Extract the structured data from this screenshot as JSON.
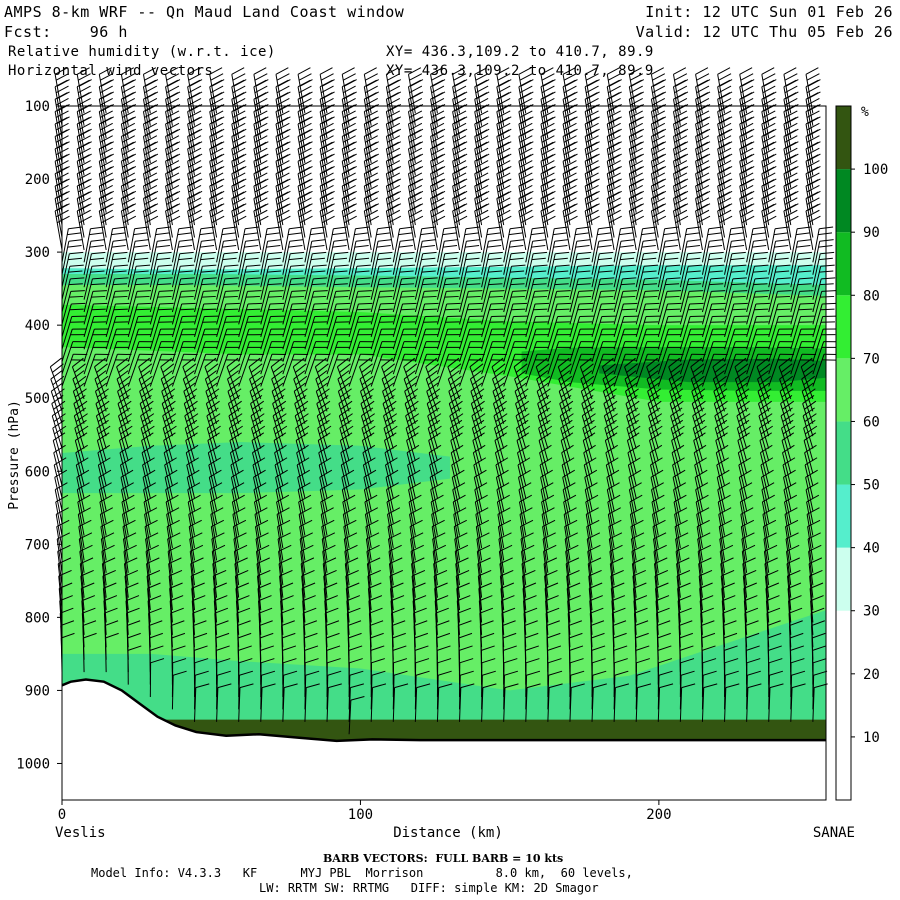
{
  "header": {
    "line1_left": "AMPS 8-km WRF -- Qn Maud Land Coast window",
    "line1_right": "Init: 12 UTC Sun 01 Feb 26",
    "line2_left": "Fcst:    96 h",
    "line2_right": "Valid: 12 UTC Thu 05 Feb 26",
    "line3_left": "Relative humidity (w.r.t. ice)",
    "line3_right": "XY= 436.3,109.2 to 410.7, 89.9",
    "line4_left": "Horizontal wind vectors",
    "line4_right": "XY= 436.3,109.2 to 410.7, 89.9"
  },
  "footer": {
    "barb_note": "BARB VECTORS:  FULL BARB = 10 kts",
    "model_line": "Model Info: V4.3.3   KF      MYJ PBL  Morrison          8.0 km,  60 levels,",
    "physics_line": "LW: RRTM SW: RRTMG   DIFF: simple KM: 2D Smagor"
  },
  "chart_data": {
    "type": "cross-section contour (filled) with wind barbs",
    "ylabel": "Pressure (hPa)",
    "xlabel": "Distance (km)",
    "x_start_label": "Veslis",
    "x_end_label": "SANAE",
    "xlim": [
      0,
      256
    ],
    "ylim": [
      100,
      1050
    ],
    "y_inverted": true,
    "x_ticks": [
      0,
      100,
      200
    ],
    "y_ticks": [
      100,
      200,
      300,
      400,
      500,
      600,
      700,
      800,
      900,
      1000
    ],
    "colorbar": {
      "unit": "%",
      "levels": [
        10,
        20,
        30,
        40,
        50,
        60,
        70,
        80,
        90,
        100
      ],
      "colors": [
        "#ffffff",
        "#ffffff",
        "#ffffff",
        "#ccffee",
        "#55eecc",
        "#44dd88",
        "#66ee66",
        "#33ee33",
        "#11bb22",
        "#008822",
        "#335511"
      ]
    },
    "terrain_hPa": [
      [
        0,
        893
      ],
      [
        3,
        888
      ],
      [
        8,
        885
      ],
      [
        14,
        888
      ],
      [
        20,
        900
      ],
      [
        26,
        918
      ],
      [
        32,
        936
      ],
      [
        38,
        948
      ],
      [
        45,
        957
      ],
      [
        55,
        962
      ],
      [
        66,
        960
      ],
      [
        80,
        965
      ],
      [
        92,
        969
      ],
      [
        104,
        967
      ],
      [
        120,
        968
      ],
      [
        150,
        968
      ],
      [
        200,
        968
      ],
      [
        256,
        968
      ]
    ],
    "layers": [
      {
        "name": "rh-30",
        "x": [
          0,
          256
        ],
        "top": [
          300,
          300
        ],
        "bottom": [
          1050,
          1050
        ],
        "color": "#ccffee"
      },
      {
        "name": "rh-40",
        "x": [
          0,
          40,
          100,
          150,
          200,
          256
        ],
        "top": [
          322,
          324,
          322,
          320,
          318,
          318
        ],
        "bottom": [
          960,
          960,
          960,
          960,
          960,
          960
        ],
        "color": "#55eecc"
      },
      {
        "name": "rh-50",
        "x": [
          0,
          50,
          100,
          150,
          200,
          256
        ],
        "top": [
          330,
          330,
          332,
          335,
          338,
          345
        ],
        "bottom": [
          955,
          955,
          955,
          955,
          955,
          955
        ],
        "color": "#44dd88"
      },
      {
        "name": "rh-60",
        "x": [
          0,
          40,
          100,
          150,
          200,
          256
        ],
        "top": [
          345,
          345,
          348,
          350,
          352,
          360
        ],
        "bottom": [
          950,
          950,
          950,
          950,
          950,
          950
        ],
        "color": "#66ee66"
      },
      {
        "name": "rh-70",
        "x": [
          0,
          30,
          60,
          100,
          150,
          200,
          256
        ],
        "top": [
          372,
          375,
          378,
          382,
          395,
          400,
          400
        ],
        "bottom": [
          430,
          435,
          440,
          440,
          470,
          505,
          505
        ],
        "color": "#33ee33"
      },
      {
        "name": "rh-80",
        "x": [
          154,
          170,
          200,
          230,
          256
        ],
        "top": [
          436,
          431,
          430,
          430,
          432
        ],
        "bottom": [
          466,
          478,
          488,
          490,
          490
        ],
        "color": "#11bb22"
      },
      {
        "name": "rh-90",
        "x": [
          180,
          210,
          240,
          256
        ],
        "top": [
          455,
          447,
          446,
          449
        ],
        "bottom": [
          466,
          478,
          478,
          472
        ],
        "color": "#008822"
      }
    ],
    "mid_moist_patch": {
      "x": [
        0,
        30,
        60,
        100,
        130
      ],
      "top": [
        575,
        565,
        560,
        565,
        580
      ],
      "bottom": [
        630,
        630,
        630,
        625,
        610
      ],
      "color": "#44dd88"
    },
    "low_patch": {
      "x": [
        0,
        30,
        60,
        100,
        150,
        190,
        256
      ],
      "top": [
        850,
        850,
        860,
        870,
        900,
        880,
        790
      ],
      "bottom": [
        950,
        950,
        950,
        950,
        950,
        950,
        950
      ],
      "color": "#44dd88"
    },
    "bottom_band": {
      "x": [
        0,
        256
      ],
      "top": [
        940,
        940
      ],
      "bottom": [
        968,
        968
      ],
      "color": "#335511"
    }
  }
}
